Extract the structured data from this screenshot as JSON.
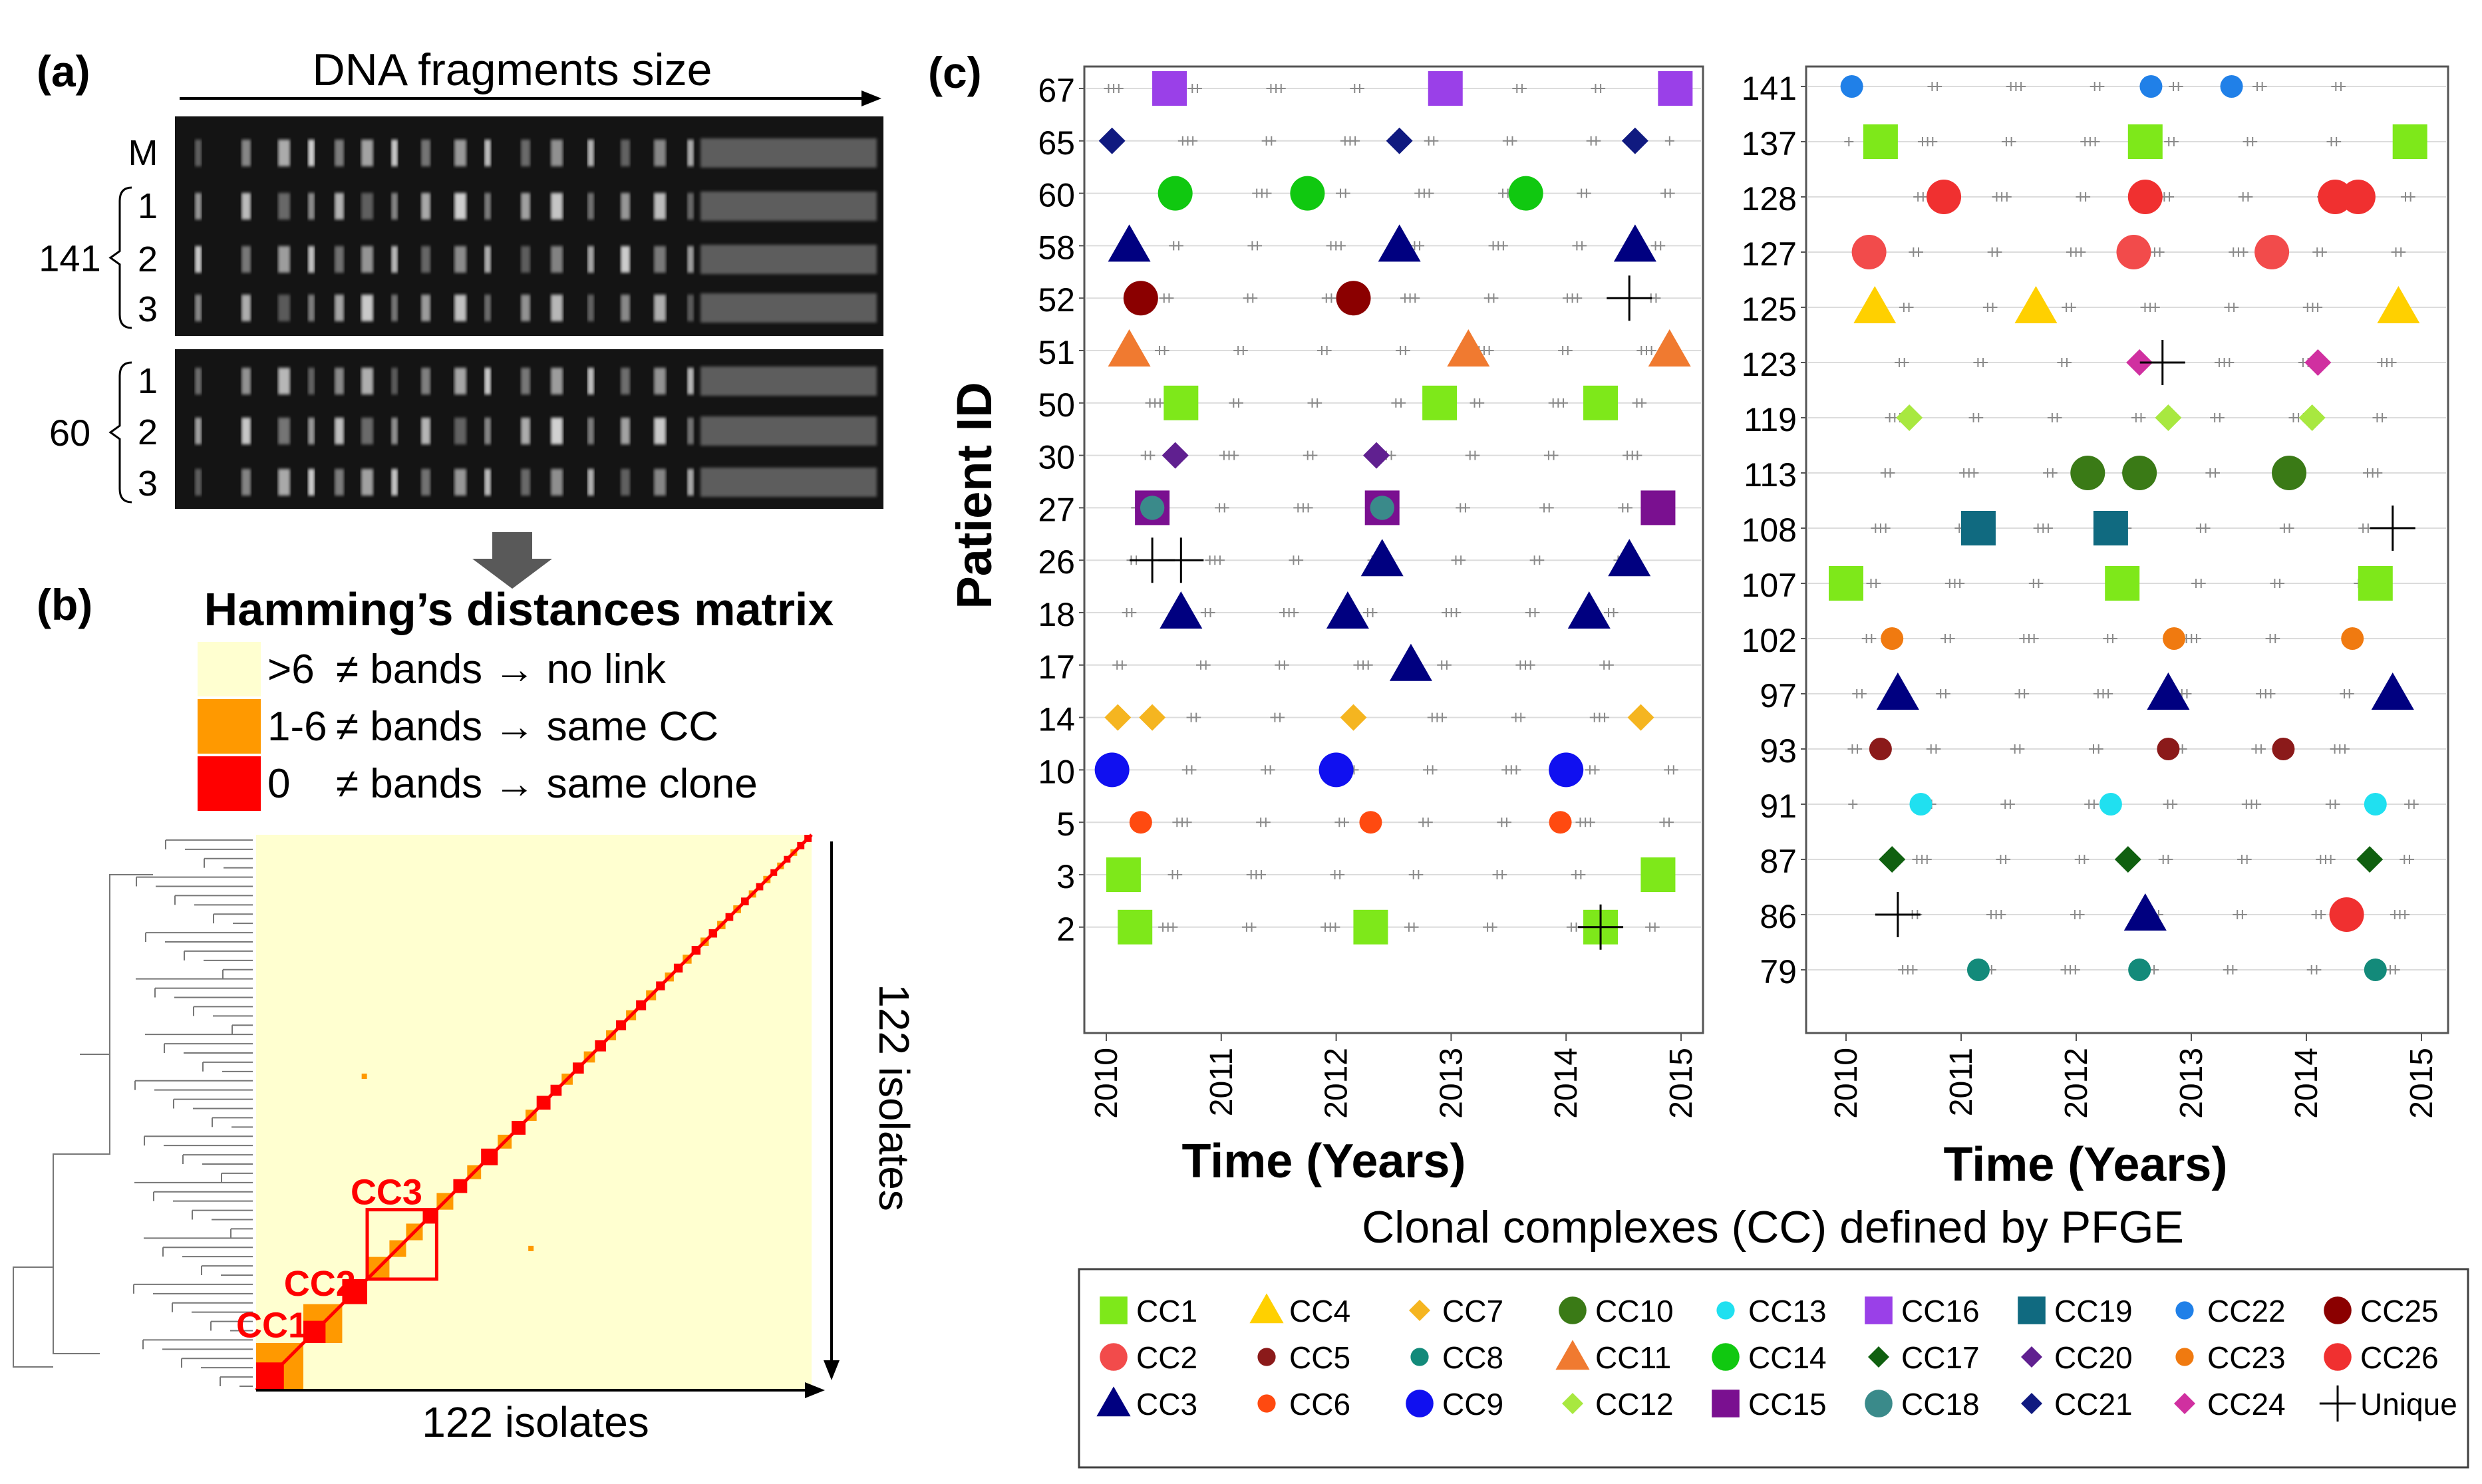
{
  "panel_labels": {
    "a": "(a)",
    "b": "(b)",
    "c": "(c)"
  },
  "gel": {
    "axis_label": "DNA fragments size",
    "marker_lane": "M",
    "groups": [
      {
        "patient": "141",
        "lanes": [
          "1",
          "2",
          "3"
        ]
      },
      {
        "patient": "60",
        "lanes": [
          "1",
          "2",
          "3"
        ]
      }
    ]
  },
  "matrix": {
    "title": "Hamming’s distances matrix",
    "legend": [
      {
        "range": ">6",
        "text": "≠ bands → no link",
        "color": "#ffffd0"
      },
      {
        "range": "1-6",
        "text": "≠ bands → same CC",
        "color": "#ff9900"
      },
      {
        "range": "0",
        "text": "≠ bands → same clone",
        "color": "#ff0000"
      }
    ],
    "x_label": "122 isolates",
    "y_label": "122 isolates",
    "cc_labels": [
      "CC1",
      "CC2",
      "CC3"
    ],
    "colors": {
      "background": "#ffffd0",
      "cc": "#ff9900",
      "clone": "#ff0000"
    }
  },
  "chart_data": [
    {
      "type": "scatter",
      "panel": "(c) left",
      "xlabel": "Time (Years)",
      "ylabel": "Patient ID",
      "xlim": [
        2010,
        2015
      ],
      "x_ticks": [
        "2010",
        "2011",
        "2012",
        "2013",
        "2014",
        "2015"
      ],
      "categories": [
        "67",
        "65",
        "60",
        "58",
        "52",
        "51",
        "50",
        "30",
        "27",
        "26",
        "18",
        "17",
        "14",
        "10",
        "5",
        "3",
        "2"
      ],
      "points": [
        {
          "patient": "67",
          "cc": "CC16",
          "x": [
            2010.55,
            2012.95,
            2014.95
          ]
        },
        {
          "patient": "65",
          "cc": "CC21",
          "x": [
            2010.05,
            2012.55,
            2014.6
          ]
        },
        {
          "patient": "60",
          "cc": "CC14",
          "x": [
            2010.6,
            2011.75,
            2013.65
          ]
        },
        {
          "patient": "58",
          "cc": "CC3",
          "x": [
            2010.2,
            2012.55,
            2014.6
          ]
        },
        {
          "patient": "52",
          "cc": "CC25",
          "x": [
            2010.3,
            2012.15
          ]
        },
        {
          "patient": "52",
          "cc": "Unique",
          "x": [
            2014.55
          ]
        },
        {
          "patient": "51",
          "cc": "CC11",
          "x": [
            2010.2,
            2013.15,
            2014.9
          ]
        },
        {
          "patient": "50",
          "cc": "CC1",
          "x": [
            2010.65,
            2012.9,
            2014.3
          ]
        },
        {
          "patient": "30",
          "cc": "CC20",
          "x": [
            2010.6,
            2012.35
          ]
        },
        {
          "patient": "27",
          "cc": "CC15",
          "x": [
            2010.4,
            2012.4,
            2014.8
          ]
        },
        {
          "patient": "27",
          "cc": "CC18",
          "x": [
            2010.4,
            2012.4
          ]
        },
        {
          "patient": "26",
          "cc": "Unique",
          "x": [
            2010.4,
            2010.65
          ]
        },
        {
          "patient": "26",
          "cc": "CC3",
          "x": [
            2012.4,
            2014.55
          ]
        },
        {
          "patient": "18",
          "cc": "CC3",
          "x": [
            2010.65,
            2012.1,
            2014.2
          ]
        },
        {
          "patient": "17",
          "cc": "CC3",
          "x": [
            2012.65
          ]
        },
        {
          "patient": "14",
          "cc": "CC7",
          "x": [
            2010.1,
            2010.4,
            2012.15,
            2014.65
          ]
        },
        {
          "patient": "10",
          "cc": "CC9",
          "x": [
            2010.05,
            2012.0,
            2014.0
          ]
        },
        {
          "patient": "5",
          "cc": "CC6",
          "x": [
            2010.3,
            2012.3,
            2013.95
          ]
        },
        {
          "patient": "3",
          "cc": "CC1",
          "x": [
            2010.15,
            2014.8
          ]
        },
        {
          "patient": "2",
          "cc": "CC1",
          "x": [
            2010.25,
            2012.3,
            2014.3
          ]
        },
        {
          "patient": "2",
          "cc": "Unique",
          "x": [
            2014.3
          ]
        }
      ]
    },
    {
      "type": "scatter",
      "panel": "(c) right",
      "xlabel": "Time (Years)",
      "ylabel": "",
      "xlim": [
        2010,
        2015
      ],
      "x_ticks": [
        "2010",
        "2011",
        "2012",
        "2013",
        "2014",
        "2015"
      ],
      "categories": [
        "141",
        "137",
        "128",
        "127",
        "125",
        "123",
        "119",
        "113",
        "108",
        "107",
        "102",
        "97",
        "93",
        "91",
        "87",
        "86",
        "79"
      ],
      "points": [
        {
          "patient": "141",
          "cc": "CC22",
          "x": [
            2010.05,
            2012.65,
            2013.35
          ]
        },
        {
          "patient": "137",
          "cc": "CC1",
          "x": [
            2010.3,
            2012.6,
            2014.9
          ]
        },
        {
          "patient": "128",
          "cc": "CC26",
          "x": [
            2010.85,
            2012.6,
            2014.25,
            2014.45
          ]
        },
        {
          "patient": "127",
          "cc": "CC2",
          "x": [
            2010.2,
            2012.5,
            2013.7
          ]
        },
        {
          "patient": "125",
          "cc": "CC4",
          "x": [
            2010.25,
            2011.65,
            2014.8
          ]
        },
        {
          "patient": "123",
          "cc": "CC24",
          "x": [
            2012.55,
            2014.1
          ]
        },
        {
          "patient": "123",
          "cc": "Unique",
          "x": [
            2012.75
          ]
        },
        {
          "patient": "119",
          "cc": "CC12",
          "x": [
            2010.55,
            2012.8,
            2014.05
          ]
        },
        {
          "patient": "113",
          "cc": "CC10",
          "x": [
            2012.1,
            2012.55,
            2013.85
          ]
        },
        {
          "patient": "108",
          "cc": "CC19",
          "x": [
            2011.15,
            2012.3
          ]
        },
        {
          "patient": "108",
          "cc": "Unique",
          "x": [
            2014.75
          ]
        },
        {
          "patient": "107",
          "cc": "CC1",
          "x": [
            2010.0,
            2012.4,
            2014.6
          ]
        },
        {
          "patient": "102",
          "cc": "CC23",
          "x": [
            2010.4,
            2012.85,
            2014.4
          ]
        },
        {
          "patient": "97",
          "cc": "CC3",
          "x": [
            2010.45,
            2012.8,
            2014.75
          ]
        },
        {
          "patient": "93",
          "cc": "CC5",
          "x": [
            2010.3,
            2012.8,
            2013.8
          ]
        },
        {
          "patient": "91",
          "cc": "CC13",
          "x": [
            2010.65,
            2012.3,
            2014.6
          ]
        },
        {
          "patient": "87",
          "cc": "CC17",
          "x": [
            2010.4,
            2012.45,
            2014.55
          ]
        },
        {
          "patient": "86",
          "cc": "Unique",
          "x": [
            2010.45
          ]
        },
        {
          "patient": "86",
          "cc": "CC3",
          "x": [
            2012.6
          ]
        },
        {
          "patient": "86",
          "cc": "CC26",
          "x": [
            2014.35
          ]
        },
        {
          "patient": "79",
          "cc": "CC8",
          "x": [
            2011.15,
            2012.55,
            2014.6
          ]
        }
      ]
    }
  ],
  "legend": {
    "title": "Clonal complexes (CC) defined by PFGE",
    "entries": [
      {
        "label": "CC1",
        "shape": "square",
        "color": "#7ee81a"
      },
      {
        "label": "CC2",
        "shape": "circle",
        "color": "#f24b4b"
      },
      {
        "label": "CC3",
        "shape": "triangle",
        "color": "#000080"
      },
      {
        "label": "CC4",
        "shape": "triangle",
        "color": "#ffd000"
      },
      {
        "label": "CC5",
        "shape": "circle-small",
        "color": "#8b1a1a"
      },
      {
        "label": "CC6",
        "shape": "circle-small",
        "color": "#ff4a10"
      },
      {
        "label": "CC7",
        "shape": "diamond",
        "color": "#f5b520"
      },
      {
        "label": "CC8",
        "shape": "circle-small",
        "color": "#138a7a"
      },
      {
        "label": "CC9",
        "shape": "circle",
        "color": "#1010f0"
      },
      {
        "label": "CC10",
        "shape": "circle",
        "color": "#3a7a16"
      },
      {
        "label": "CC11",
        "shape": "triangle",
        "color": "#f07a30"
      },
      {
        "label": "CC12",
        "shape": "diamond",
        "color": "#a8e840"
      },
      {
        "label": "CC13",
        "shape": "circle-small",
        "color": "#20e0f0"
      },
      {
        "label": "CC14",
        "shape": "circle",
        "color": "#10c810"
      },
      {
        "label": "CC15",
        "shape": "square",
        "color": "#7a1090"
      },
      {
        "label": "CC16",
        "shape": "square",
        "color": "#9a40e8"
      },
      {
        "label": "CC17",
        "shape": "diamond",
        "color": "#106010"
      },
      {
        "label": "CC18",
        "shape": "circle",
        "color": "#3a8a8a"
      },
      {
        "label": "CC19",
        "shape": "square",
        "color": "#106a80"
      },
      {
        "label": "CC20",
        "shape": "diamond",
        "color": "#602090"
      },
      {
        "label": "CC21",
        "shape": "diamond",
        "color": "#101a80"
      },
      {
        "label": "CC22",
        "shape": "circle-small",
        "color": "#2080e8"
      },
      {
        "label": "CC23",
        "shape": "circle-small",
        "color": "#f07a10"
      },
      {
        "label": "CC24",
        "shape": "diamond",
        "color": "#d030a0"
      },
      {
        "label": "CC25",
        "shape": "circle",
        "color": "#8b0000"
      },
      {
        "label": "CC26",
        "shape": "circle",
        "color": "#f03030"
      },
      {
        "label": "Unique",
        "shape": "plus",
        "color": "#000000"
      }
    ]
  }
}
